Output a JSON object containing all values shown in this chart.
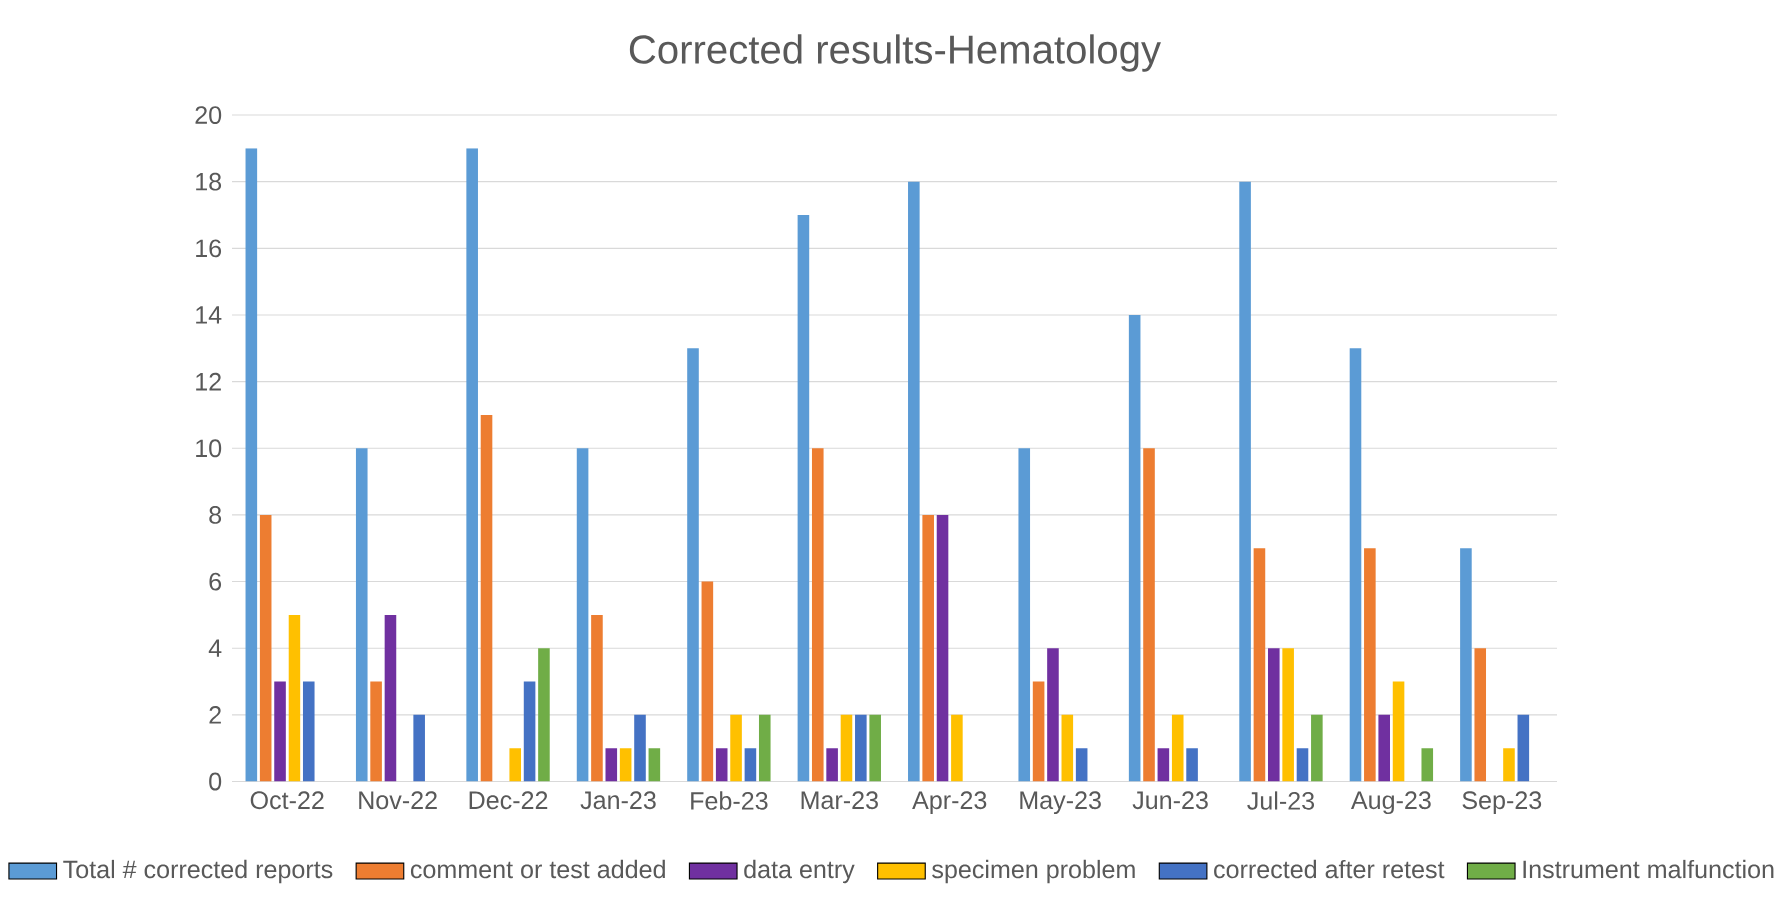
{
  "chart_data": {
    "type": "bar",
    "title": "Corrected results-Hematology",
    "categories": [
      "Oct-22",
      "Nov-22",
      "Dec-22",
      "Jan-23",
      "Feb-23",
      "Mar-23",
      "Apr-23",
      "May-23",
      "Jun-23",
      "Jul-23",
      "Aug-23",
      "Sep-23"
    ],
    "series": [
      {
        "name": "Total # corrected reports",
        "color": "#5b9bd5",
        "values": [
          19,
          10,
          19,
          10,
          13,
          17,
          18,
          10,
          14,
          18,
          13,
          7
        ]
      },
      {
        "name": "comment or test added",
        "color": "#ed7d31",
        "values": [
          8,
          3,
          11,
          5,
          6,
          10,
          8,
          3,
          10,
          7,
          7,
          4
        ]
      },
      {
        "name": "data entry",
        "color": "#7030a0",
        "values": [
          3,
          5,
          0,
          1,
          1,
          1,
          8,
          4,
          1,
          4,
          2,
          0
        ]
      },
      {
        "name": "specimen problem",
        "color": "#ffc000",
        "values": [
          5,
          0,
          1,
          1,
          2,
          2,
          2,
          2,
          2,
          4,
          3,
          1
        ]
      },
      {
        "name": "corrected after retest",
        "color": "#4472c4",
        "values": [
          3,
          2,
          3,
          2,
          1,
          2,
          0,
          1,
          1,
          1,
          0,
          2
        ]
      },
      {
        "name": "Instrument malfunction",
        "color": "#70ad47",
        "values": [
          0,
          0,
          4,
          1,
          2,
          2,
          0,
          0,
          0,
          2,
          1,
          0
        ]
      }
    ],
    "ylim": [
      0,
      20
    ],
    "yticks": [
      0,
      2,
      4,
      6,
      8,
      10,
      12,
      14,
      16,
      18,
      20
    ],
    "grid": "y",
    "legend": "bottom"
  }
}
